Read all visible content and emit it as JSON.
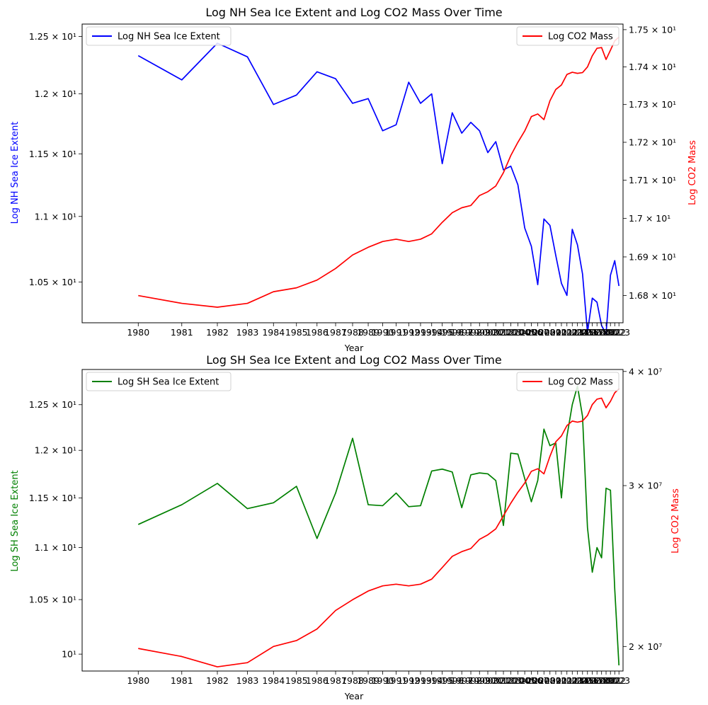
{
  "chart_data": [
    {
      "type": "line",
      "title": "Log NH Sea Ice Extent and Log CO2 Mass Over Time",
      "xlabel": "Year",
      "ylabel_left": "Log NH Sea Ice Extent",
      "ylabel_right": "Log CO2 Mass",
      "yscale_left": "log",
      "yscale_right": "log",
      "ylim_left": [
        10.2,
        12.61
      ],
      "ylim_right": [
        16.73,
        17.515
      ],
      "x_ticks": [
        "1980",
        "1981",
        "1982",
        "1983",
        "1984",
        "1985",
        "1986",
        "1987",
        "1988",
        "1989",
        "1990",
        "1991",
        "1992",
        "1993",
        "1994",
        "1995",
        "1996",
        "1997",
        "1998",
        "1999",
        "2000",
        "2001",
        "2002",
        "2003",
        "2004",
        "2005",
        "2006",
        "2007",
        "2008",
        "2009",
        "2010",
        "2011",
        "2012",
        "2013",
        "2014",
        "2015",
        "2016",
        "2017",
        "2018",
        "2019",
        "2020",
        "2021",
        "2022",
        "2023"
      ],
      "y_ticks_left": [
        {
          "value": 10.5,
          "label": "1.05 × 10¹"
        },
        {
          "value": 11.0,
          "label": "1.1 × 10¹"
        },
        {
          "value": 11.5,
          "label": "1.15 × 10¹"
        },
        {
          "value": 12.0,
          "label": "1.2 × 10¹"
        },
        {
          "value": 12.5,
          "label": "1.25 × 10¹"
        }
      ],
      "y_ticks_right": [
        {
          "value": 16.8,
          "label": "1.68 × 10¹"
        },
        {
          "value": 16.9,
          "label": "1.69 × 10¹"
        },
        {
          "value": 17.0,
          "label": "1.7 × 10¹"
        },
        {
          "value": 17.1,
          "label": "1.71 × 10¹"
        },
        {
          "value": 17.2,
          "label": "1.72 × 10¹"
        },
        {
          "value": 17.3,
          "label": "1.73 × 10¹"
        },
        {
          "value": 17.4,
          "label": "1.74 × 10¹"
        },
        {
          "value": 17.5,
          "label": "1.75 × 10¹"
        }
      ],
      "series_left": {
        "name": "Log NH Sea Ice Extent",
        "color": "#0000ff",
        "legend_loc": "upper left",
        "y": [
          12.33,
          12.12,
          12.44,
          12.32,
          11.91,
          11.99,
          12.19,
          12.13,
          11.92,
          11.96,
          11.69,
          11.74,
          12.1,
          11.92,
          12.0,
          11.42,
          11.84,
          11.67,
          11.76,
          11.69,
          11.51,
          11.6,
          11.37,
          11.4,
          11.25,
          10.91,
          10.77,
          10.48,
          10.98,
          10.93,
          10.7,
          10.49,
          10.4,
          10.9,
          10.78,
          10.56,
          10.13,
          10.38,
          10.35,
          10.18,
          10.12,
          10.55,
          10.66,
          10.47
        ]
      },
      "series_right": {
        "name": "Log CO2 Mass",
        "color": "#ff0000",
        "legend_loc": "upper right",
        "y": [
          16.8,
          16.78,
          16.77,
          16.78,
          16.81,
          16.82,
          16.84,
          16.87,
          16.905,
          16.925,
          16.94,
          16.946,
          16.94,
          16.946,
          16.96,
          16.99,
          17.015,
          17.028,
          17.034,
          17.06,
          17.07,
          17.085,
          17.12,
          17.165,
          17.2,
          17.23,
          17.268,
          17.275,
          17.26,
          17.31,
          17.34,
          17.352,
          17.38,
          17.386,
          17.383,
          17.385,
          17.4,
          17.43,
          17.45,
          17.452,
          17.42,
          17.445,
          17.47,
          17.48
        ]
      }
    },
    {
      "type": "line",
      "title": "Log SH Sea Ice Extent and Log CO2 Mass Over Time",
      "xlabel": "Year",
      "ylabel_left": "Log SH Sea Ice Extent",
      "ylabel_right": "Log CO2 Mass",
      "yscale_left": "log",
      "yscale_right": "log",
      "ylim_left": [
        9.85,
        12.9
      ],
      "ylim_right": [
        18800000,
        40200000
      ],
      "x_ticks": [
        "1980",
        "1981",
        "1982",
        "1983",
        "1984",
        "1985",
        "1986",
        "1987",
        "1988",
        "1989",
        "1990",
        "1991",
        "1992",
        "1993",
        "1994",
        "1995",
        "1996",
        "1997",
        "1998",
        "1999",
        "2000",
        "2001",
        "2002",
        "2003",
        "2004",
        "2005",
        "2006",
        "2007",
        "2008",
        "2009",
        "2010",
        "2011",
        "2012",
        "2013",
        "2014",
        "2015",
        "2016",
        "2017",
        "2018",
        "2019",
        "2020",
        "2021",
        "2022",
        "2023"
      ],
      "y_ticks_left": [
        {
          "value": 10.0,
          "label": "10¹",
          "green": true
        },
        {
          "value": 10.5,
          "label": "1.05 × 10¹"
        },
        {
          "value": 11.0,
          "label": "1.1 × 10¹"
        },
        {
          "value": 11.5,
          "label": "1.15 × 10¹"
        },
        {
          "value": 12.0,
          "label": "1.2 × 10¹"
        },
        {
          "value": 12.5,
          "label": "1.25 × 10¹"
        }
      ],
      "y_ticks_right": [
        {
          "value": 20000000,
          "label": "2 × 10⁷"
        },
        {
          "value": 30000000,
          "label": "3 × 10⁷"
        },
        {
          "value": 40000000,
          "label": "4 × 10⁷"
        }
      ],
      "series_left": {
        "name": "Log SH Sea Ice Extent",
        "color": "#008000",
        "legend_loc": "upper left",
        "y": [
          11.23,
          11.43,
          11.65,
          11.39,
          11.45,
          11.62,
          11.09,
          11.55,
          12.13,
          11.43,
          11.42,
          11.55,
          11.41,
          11.42,
          11.78,
          11.8,
          11.77,
          11.4,
          11.74,
          11.76,
          11.75,
          11.68,
          11.22,
          11.97,
          11.96,
          11.7,
          11.46,
          11.68,
          12.23,
          12.05,
          12.08,
          11.5,
          12.15,
          12.5,
          12.71,
          12.37,
          11.2,
          10.76,
          11.0,
          10.9,
          11.6,
          11.58,
          10.6,
          9.9
        ]
      },
      "series_right": {
        "name": "Log CO2 Mass",
        "color": "#ff0000",
        "legend_loc": "upper right",
        "y": [
          19900000,
          19500000,
          19000000,
          19200000,
          20000000,
          20300000,
          20900000,
          21900000,
          22500000,
          23000000,
          23300000,
          23400000,
          23300000,
          23400000,
          23700000,
          24400000,
          25100000,
          25400000,
          25600000,
          26200000,
          26500000,
          26900000,
          27800000,
          28700000,
          29500000,
          30200000,
          31100000,
          31300000,
          30900000,
          32300000,
          33500000,
          34000000,
          34900000,
          35300000,
          35200000,
          35300000,
          35800000,
          36800000,
          37300000,
          37400000,
          36500000,
          37100000,
          37900000,
          38300000
        ]
      }
    }
  ]
}
